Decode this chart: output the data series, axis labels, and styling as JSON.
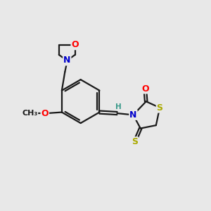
{
  "bg_color": "#e8e8e8",
  "bond_color": "#1a1a1a",
  "bond_width": 1.6,
  "atom_colors": {
    "O": "#ff0000",
    "N": "#0000cc",
    "S": "#aaaa00",
    "H": "#3a9a8a"
  },
  "font_size": 9.5,
  "bg": "#e8e8e8"
}
